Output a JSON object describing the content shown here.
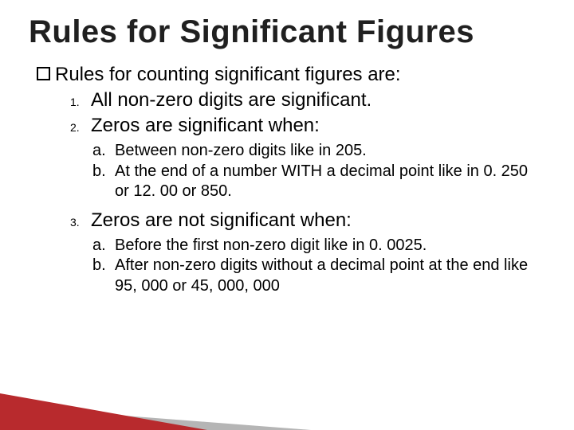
{
  "title": "Rules for Significant Figures",
  "lead": "Rules for counting significant figures are:",
  "rules": {
    "r1": {
      "marker": "1.",
      "text": "All non-zero digits are significant."
    },
    "r2": {
      "marker": "2.",
      "text": "Zeros are significant when:"
    },
    "r3": {
      "marker": "3.",
      "text": "Zeros are not significant when:"
    }
  },
  "sub2": {
    "a": {
      "marker": "a.",
      "text": "Between non-zero digits like in 205."
    },
    "b": {
      "marker": "b.",
      "text": "At the end of a number WITH a decimal point like in 0. 250 or 12. 00 or 850."
    }
  },
  "sub3": {
    "a": {
      "marker": "a.",
      "text": "Before the first non-zero digit like in 0. 0025."
    },
    "b": {
      "marker": "b.",
      "text": "After non-zero digits without a decimal point at the end like 95, 000 or 45, 000, 000"
    }
  },
  "colors": {
    "wedge": "#b82a2d",
    "text": "#000000",
    "title": "#202020",
    "bg": "#ffffff"
  },
  "fontsize": {
    "title": 40,
    "body": 24,
    "sub": 20,
    "marker": 14
  }
}
